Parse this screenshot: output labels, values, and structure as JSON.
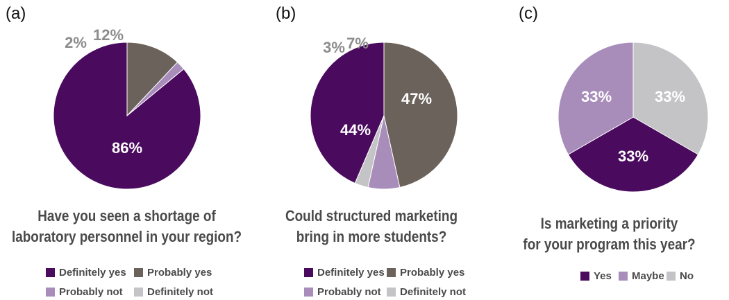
{
  "colors": {
    "Definitely yes": "#4a0a5e",
    "Probably yes": "#6b625b",
    "Probably not": "#a88dbb",
    "Definitely not": "#c4c4c6",
    "Yes": "#4a0a5e",
    "Maybe": "#a88dbb",
    "No": "#c4c4c6"
  },
  "chart_data": [
    {
      "type": "pie",
      "panel": "(a)",
      "title": "Have you seen a shortage of\nlaboratory personnel in your region?",
      "title_lines": [
        "Have you seen a shortage of",
        "laboratory personnel in your region?"
      ],
      "slices": [
        {
          "name": "Definitely yes",
          "value": 86,
          "label": "86%"
        },
        {
          "name": "Definitely not",
          "value": 0,
          "label": ""
        },
        {
          "name": "Probably not",
          "value": 2,
          "label": "2%"
        },
        {
          "name": "Probably yes",
          "value": 12,
          "label": "12%"
        }
      ],
      "legend": [
        "Definitely yes",
        "Probably yes",
        "Probably not",
        "Definitely not"
      ]
    },
    {
      "type": "pie",
      "panel": "(b)",
      "title": "Could structured marketing\nbring in more students?",
      "title_lines": [
        "Could structured marketing",
        "bring in more students?"
      ],
      "slices": [
        {
          "name": "Definitely yes",
          "value": 44,
          "label": "44%"
        },
        {
          "name": "Definitely not",
          "value": 3,
          "label": "3%"
        },
        {
          "name": "Probably not",
          "value": 7,
          "label": "7%"
        },
        {
          "name": "Probably yes",
          "value": 47,
          "label": "47%"
        }
      ],
      "legend": [
        "Definitely yes",
        "Probably yes",
        "Probably not",
        "Definitely not"
      ]
    },
    {
      "type": "pie",
      "panel": "(c)",
      "title": "Is marketing a priority\nfor your program this year?",
      "title_lines": [
        "Is marketing a priority",
        "for your program this year?"
      ],
      "slices": [
        {
          "name": "No",
          "value": 33,
          "label": "33%"
        },
        {
          "name": "Yes",
          "value": 33,
          "label": "33%"
        },
        {
          "name": "Maybe",
          "value": 33,
          "label": "33%"
        }
      ],
      "legend": [
        "Yes",
        "Maybe",
        "No"
      ]
    }
  ]
}
